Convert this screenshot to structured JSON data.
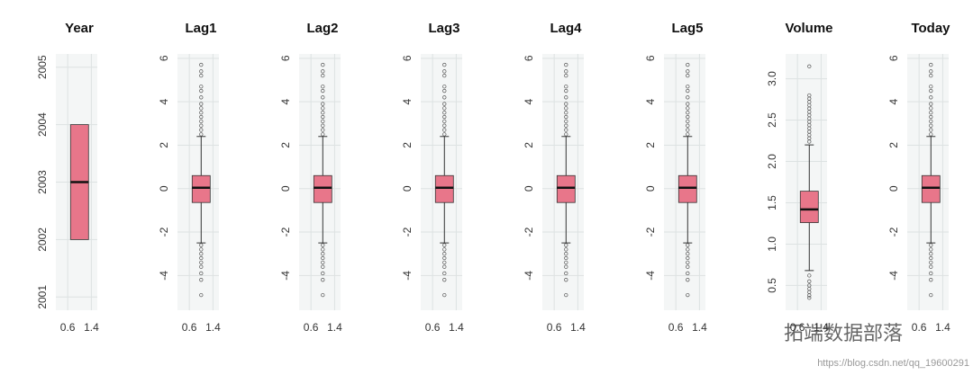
{
  "chart_data": [
    {
      "type": "box",
      "title": "Year",
      "ylim": [
        2000.77,
        2005.23
      ],
      "yticks": [
        2001,
        2002,
        2003,
        2004,
        2005
      ],
      "xlim": [
        0.2,
        1.6
      ],
      "xticks": [
        0.6,
        1.4
      ],
      "grid": true,
      "color": "#e8768a",
      "position": 1,
      "q1": 2002,
      "median": 2003,
      "q3": 2004,
      "outliers": []
    },
    {
      "type": "box",
      "title": "Lag1",
      "ylim": [
        -5.6,
        6.2
      ],
      "yticks": [
        -4,
        -2,
        0,
        2,
        4,
        6
      ],
      "xlim": [
        0.2,
        1.6
      ],
      "xticks": [
        0.6,
        1.4
      ],
      "grid": true,
      "color": "#e8768a",
      "position": 1,
      "q1": -0.64,
      "median": 0.04,
      "q3": 0.6,
      "whisker_low": -2.5,
      "whisker_high": 2.4,
      "outliers": [
        2.5,
        2.7,
        2.9,
        3.1,
        3.3,
        3.5,
        3.7,
        3.9,
        4.2,
        4.5,
        4.7,
        5.2,
        5.4,
        5.7,
        -2.6,
        -2.8,
        -3.0,
        -3.2,
        -3.4,
        -3.6,
        -3.9,
        -4.2,
        -4.9
      ]
    },
    {
      "type": "box",
      "title": "Lag2",
      "ylim": [
        -5.6,
        6.2
      ],
      "yticks": [
        -4,
        -2,
        0,
        2,
        4,
        6
      ],
      "xlim": [
        0.2,
        1.6
      ],
      "xticks": [
        0.6,
        1.4
      ],
      "grid": true,
      "color": "#e8768a",
      "position": 1,
      "q1": -0.64,
      "median": 0.04,
      "q3": 0.6,
      "whisker_low": -2.5,
      "whisker_high": 2.4,
      "outliers": [
        2.5,
        2.7,
        2.9,
        3.1,
        3.3,
        3.5,
        3.7,
        3.9,
        4.2,
        4.5,
        4.7,
        5.2,
        5.4,
        5.7,
        -2.6,
        -2.8,
        -3.0,
        -3.2,
        -3.4,
        -3.6,
        -3.9,
        -4.2,
        -4.9
      ]
    },
    {
      "type": "box",
      "title": "Lag3",
      "ylim": [
        -5.6,
        6.2
      ],
      "yticks": [
        -4,
        -2,
        0,
        2,
        4,
        6
      ],
      "xlim": [
        0.2,
        1.6
      ],
      "xticks": [
        0.6,
        1.4
      ],
      "grid": true,
      "color": "#e8768a",
      "position": 1,
      "q1": -0.64,
      "median": 0.04,
      "q3": 0.6,
      "whisker_low": -2.5,
      "whisker_high": 2.4,
      "outliers": [
        2.5,
        2.7,
        2.9,
        3.1,
        3.3,
        3.5,
        3.7,
        3.9,
        4.2,
        4.5,
        4.7,
        5.2,
        5.4,
        5.7,
        -2.6,
        -2.8,
        -3.0,
        -3.2,
        -3.4,
        -3.6,
        -3.9,
        -4.2,
        -4.9
      ]
    },
    {
      "type": "box",
      "title": "Lag4",
      "ylim": [
        -5.6,
        6.2
      ],
      "yticks": [
        -4,
        -2,
        0,
        2,
        4,
        6
      ],
      "xlim": [
        0.2,
        1.6
      ],
      "xticks": [
        0.6,
        1.4
      ],
      "grid": true,
      "color": "#e8768a",
      "position": 1,
      "q1": -0.64,
      "median": 0.04,
      "q3": 0.6,
      "whisker_low": -2.5,
      "whisker_high": 2.4,
      "outliers": [
        2.5,
        2.7,
        2.9,
        3.1,
        3.3,
        3.5,
        3.7,
        3.9,
        4.2,
        4.5,
        4.7,
        5.2,
        5.4,
        5.7,
        -2.6,
        -2.8,
        -3.0,
        -3.2,
        -3.4,
        -3.6,
        -3.9,
        -4.2,
        -4.9
      ]
    },
    {
      "type": "box",
      "title": "Lag5",
      "ylim": [
        -5.6,
        6.2
      ],
      "yticks": [
        -4,
        -2,
        0,
        2,
        4,
        6
      ],
      "xlim": [
        0.2,
        1.6
      ],
      "xticks": [
        0.6,
        1.4
      ],
      "grid": true,
      "color": "#e8768a",
      "position": 1,
      "q1": -0.64,
      "median": 0.04,
      "q3": 0.6,
      "whisker_low": -2.5,
      "whisker_high": 2.4,
      "outliers": [
        2.5,
        2.7,
        2.9,
        3.1,
        3.3,
        3.5,
        3.7,
        3.9,
        4.2,
        4.5,
        4.7,
        5.2,
        5.4,
        5.7,
        -2.6,
        -2.8,
        -3.0,
        -3.2,
        -3.4,
        -3.6,
        -3.9,
        -4.2,
        -4.9
      ]
    },
    {
      "type": "box",
      "title": "Volume",
      "ylim": [
        0.2,
        3.3
      ],
      "yticks": [
        0.5,
        {
          "value": 1,
          "label": "1.0"
        },
        1.5,
        {
          "value": 2,
          "label": "2.0"
        },
        2.5,
        {
          "value": 3,
          "label": "3.0"
        }
      ],
      "xlim": [
        0.2,
        1.6
      ],
      "xticks": [
        0.6,
        1.4
      ],
      "grid": true,
      "color": "#e8768a",
      "position": 1,
      "q1": 1.26,
      "median": 1.42,
      "q3": 1.64,
      "whisker_low": 0.68,
      "whisker_high": 2.2,
      "outliers": [
        2.24,
        2.28,
        2.32,
        2.36,
        2.4,
        2.44,
        2.48,
        2.52,
        2.56,
        2.6,
        2.64,
        2.68,
        2.72,
        2.76,
        2.8,
        3.15,
        0.62,
        0.55,
        0.5,
        0.46,
        0.42,
        0.38,
        0.35
      ]
    },
    {
      "type": "box",
      "title": "Today",
      "ylim": [
        -5.6,
        6.2
      ],
      "yticks": [
        -4,
        -2,
        0,
        2,
        4,
        6
      ],
      "xlim": [
        0.2,
        1.6
      ],
      "xticks": [
        0.6,
        1.4
      ],
      "grid": true,
      "color": "#e8768a",
      "position": 1,
      "q1": -0.64,
      "median": 0.04,
      "q3": 0.6,
      "whisker_low": -2.5,
      "whisker_high": 2.4,
      "outliers": [
        2.5,
        2.7,
        2.9,
        3.1,
        3.3,
        3.5,
        3.7,
        3.9,
        4.2,
        4.5,
        4.7,
        5.2,
        5.4,
        5.7,
        -2.6,
        -2.8,
        -3.0,
        -3.2,
        -3.4,
        -3.6,
        -3.9,
        -4.2,
        -4.9
      ]
    }
  ],
  "watermark": {
    "text": "拓端数据部落",
    "url": "https://blog.csdn.net/qq_19600291"
  }
}
